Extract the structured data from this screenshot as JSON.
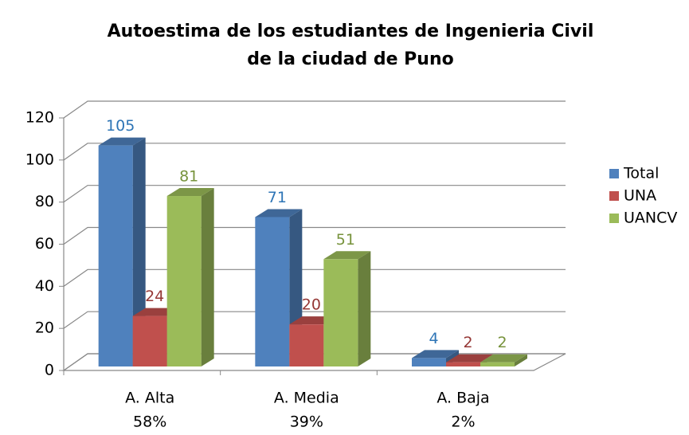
{
  "chart_data": {
    "type": "bar3d",
    "title": "Autoestima de los estudiantes de Ingenieria Civil",
    "title_line2": "de la ciudad de Puno",
    "categories": [
      "A. Alta",
      "A. Media",
      "A. Baja"
    ],
    "category_percent_labels": [
      "58%",
      "39%",
      "2%"
    ],
    "series": [
      {
        "name": "Total",
        "color": "#4f81bd",
        "label_color": "#2e75b6",
        "values": [
          105,
          71,
          4
        ]
      },
      {
        "name": "UNA",
        "color": "#c0504d",
        "label_color": "#953735",
        "values": [
          24,
          20,
          2
        ]
      },
      {
        "name": "UANCV",
        "color": "#9bbb59",
        "label_color": "#77933c",
        "values": [
          81,
          51,
          2
        ]
      }
    ],
    "ylim": [
      0,
      120
    ],
    "yticks": [
      0,
      20,
      40,
      60,
      80,
      100,
      120
    ],
    "grid": true,
    "legend": "right"
  }
}
